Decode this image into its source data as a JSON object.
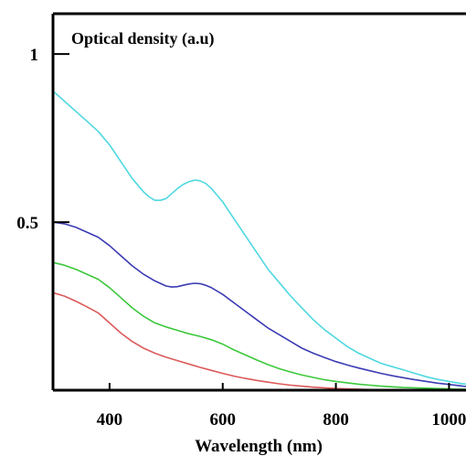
{
  "chart_data": {
    "type": "line",
    "title": "Optical density (a.u)",
    "xlabel": "Wavelength (nm)",
    "ylabel": "",
    "xlim": [
      300,
      1030
    ],
    "ylim": [
      0,
      1.12
    ],
    "x_ticks": [
      400,
      600,
      800,
      1000
    ],
    "x_tick_labels": [
      "400",
      "600",
      "800",
      "1000"
    ],
    "y_ticks": [
      0.5,
      1
    ],
    "y_tick_labels": [
      "0.5",
      "1"
    ],
    "grid": false,
    "legend": "none",
    "series": [
      {
        "color": "#4fd8e0",
        "x": [
          300,
          320,
          340,
          360,
          380,
          400,
          420,
          440,
          460,
          470,
          480,
          490,
          500,
          510,
          520,
          530,
          540,
          550,
          560,
          570,
          580,
          590,
          600,
          620,
          640,
          660,
          680,
          700,
          720,
          740,
          760,
          780,
          800,
          820,
          840,
          860,
          880,
          900,
          920,
          940,
          960,
          980,
          1000,
          1020,
          1030
        ],
        "y": [
          0.89,
          0.86,
          0.83,
          0.8,
          0.77,
          0.73,
          0.68,
          0.63,
          0.59,
          0.575,
          0.565,
          0.565,
          0.57,
          0.585,
          0.6,
          0.612,
          0.62,
          0.625,
          0.623,
          0.615,
          0.6,
          0.58,
          0.56,
          0.51,
          0.46,
          0.41,
          0.36,
          0.32,
          0.28,
          0.245,
          0.21,
          0.18,
          0.155,
          0.13,
          0.11,
          0.095,
          0.08,
          0.07,
          0.06,
          0.05,
          0.04,
          0.032,
          0.026,
          0.02,
          0.018
        ]
      },
      {
        "color": "#3c3cb4",
        "x": [
          300,
          320,
          340,
          360,
          380,
          400,
          420,
          440,
          460,
          480,
          500,
          510,
          520,
          530,
          540,
          550,
          560,
          570,
          580,
          600,
          620,
          640,
          660,
          680,
          700,
          720,
          740,
          760,
          780,
          800,
          820,
          840,
          860,
          880,
          900,
          920,
          940,
          960,
          980,
          1000,
          1020,
          1030
        ],
        "y": [
          0.5,
          0.495,
          0.485,
          0.47,
          0.455,
          0.43,
          0.4,
          0.37,
          0.345,
          0.325,
          0.31,
          0.307,
          0.308,
          0.312,
          0.316,
          0.318,
          0.317,
          0.312,
          0.305,
          0.285,
          0.26,
          0.235,
          0.21,
          0.185,
          0.165,
          0.145,
          0.125,
          0.11,
          0.097,
          0.085,
          0.075,
          0.066,
          0.058,
          0.05,
          0.043,
          0.037,
          0.031,
          0.026,
          0.021,
          0.017,
          0.013,
          0.011
        ]
      },
      {
        "color": "#3cc83c",
        "x": [
          300,
          320,
          340,
          360,
          380,
          400,
          420,
          440,
          460,
          480,
          500,
          520,
          540,
          560,
          580,
          600,
          620,
          640,
          660,
          680,
          700,
          720,
          740,
          760,
          780,
          800,
          820,
          840,
          860,
          880,
          900,
          920,
          940,
          960,
          980,
          1000,
          1020,
          1030
        ],
        "y": [
          0.38,
          0.372,
          0.36,
          0.345,
          0.33,
          0.305,
          0.275,
          0.245,
          0.22,
          0.2,
          0.188,
          0.178,
          0.168,
          0.16,
          0.15,
          0.137,
          0.12,
          0.105,
          0.09,
          0.076,
          0.064,
          0.054,
          0.045,
          0.038,
          0.031,
          0.026,
          0.022,
          0.018,
          0.015,
          0.012,
          0.01,
          0.008,
          0.007,
          0.006,
          0.005,
          0.004,
          0.003,
          0.003
        ]
      },
      {
        "color": "#dc5a5a",
        "x": [
          300,
          320,
          340,
          360,
          380,
          400,
          420,
          440,
          460,
          480,
          500,
          520,
          540,
          560,
          580,
          600,
          620,
          640,
          660,
          680,
          700,
          720,
          740,
          760,
          780,
          800,
          820,
          840,
          860,
          880,
          900,
          920,
          940,
          960,
          980,
          1000,
          1020,
          1030
        ],
        "y": [
          0.29,
          0.28,
          0.265,
          0.248,
          0.23,
          0.2,
          0.17,
          0.145,
          0.125,
          0.11,
          0.098,
          0.088,
          0.078,
          0.068,
          0.059,
          0.05,
          0.042,
          0.035,
          0.029,
          0.024,
          0.019,
          0.015,
          0.012,
          0.009,
          0.007,
          0.005,
          0.004,
          0.003,
          0.002,
          0.002,
          0.001,
          0.001,
          0.001,
          0.001,
          0.0,
          0.0,
          0.0,
          0.0
        ]
      }
    ]
  }
}
